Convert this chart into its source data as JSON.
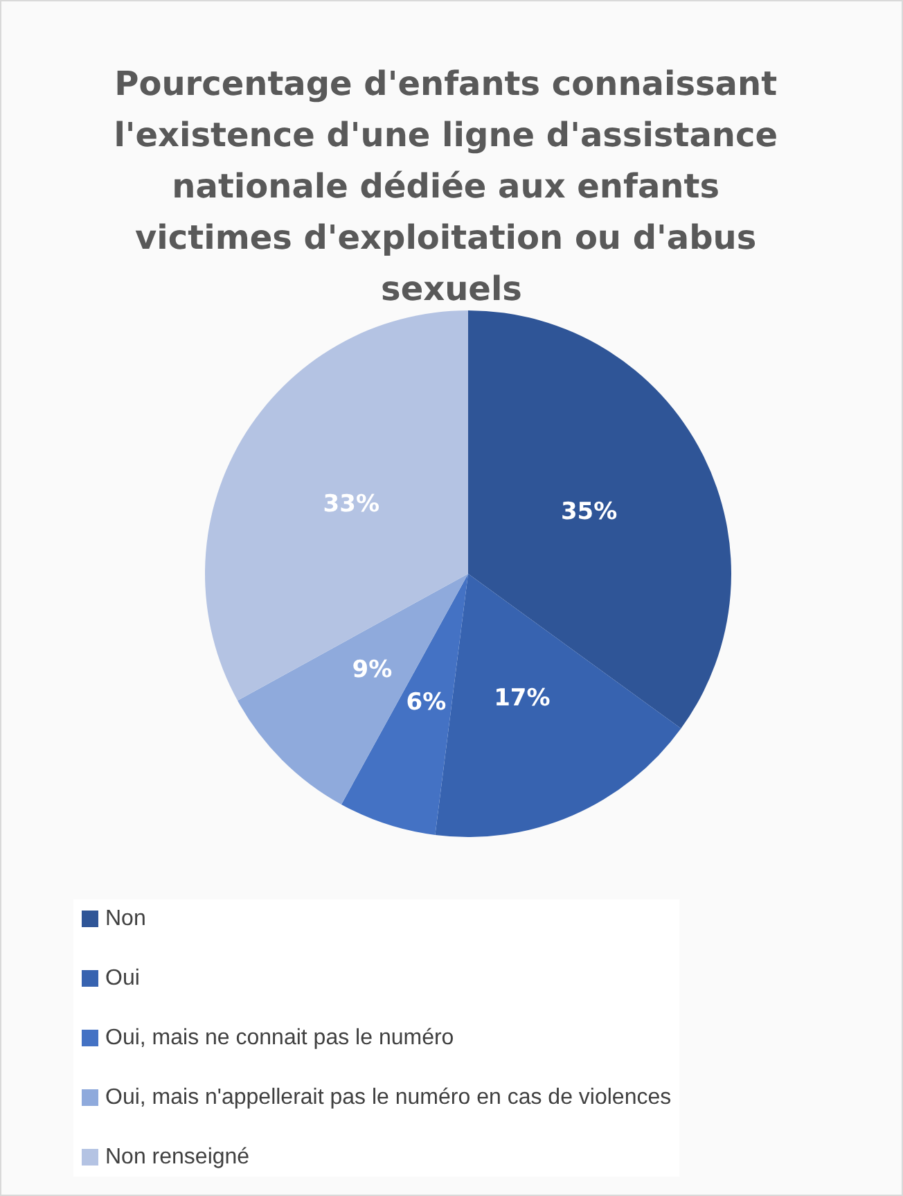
{
  "chart_data": {
    "type": "pie",
    "title": "Pourcentage d'enfants connaissant l'existence d'une ligne d'assistance nationale dédiée aux enfants victimes d'exploitation ou d'abus sexuels",
    "categories": [
      "Non",
      "Oui",
      "Oui, mais ne connait pas le numéro",
      "Oui, mais n'appellerait pas le numéro en cas de violences",
      "Non renseigné"
    ],
    "values": [
      35,
      17,
      6,
      9,
      33
    ],
    "value_labels": [
      "35%",
      "17%",
      "6%",
      "9%",
      "33%"
    ],
    "colors": [
      "#2f5597",
      "#3763b0",
      "#4472c4",
      "#8faadc",
      "#b4c3e3"
    ],
    "legend": "bottom"
  }
}
